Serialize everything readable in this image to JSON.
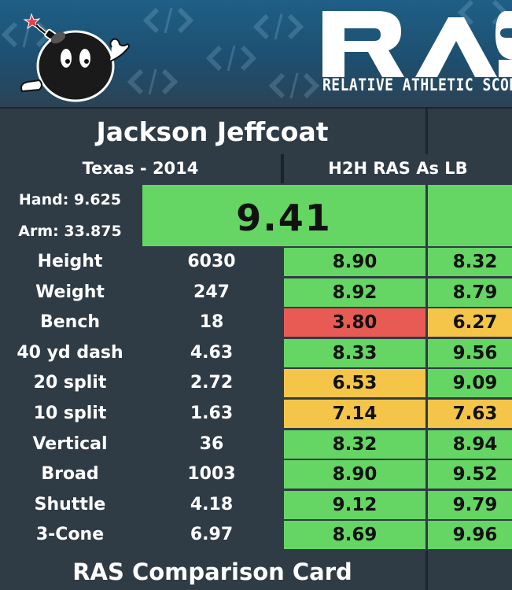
{
  "logo": {
    "text": "RAS",
    "tagline": "RELATIVE ATHLETIC SCORE"
  },
  "player": {
    "name": "Jackson Jeffcoat"
  },
  "header": {
    "school_year": "Texas - 2014",
    "comparison": "H2H RAS As LB"
  },
  "measurements": {
    "hand": "Hand: 9.625",
    "arm": "Arm: 33.875"
  },
  "overall_score": "9.41",
  "metrics": [
    {
      "label": "Height",
      "value": "6030",
      "score1": "8.90",
      "score1_color": "green",
      "score2": "8.32",
      "score2_color": "green"
    },
    {
      "label": "Weight",
      "value": "247",
      "score1": "8.92",
      "score1_color": "green",
      "score2": "8.79",
      "score2_color": "green"
    },
    {
      "label": "Bench",
      "value": "18",
      "score1": "3.80",
      "score1_color": "red",
      "score2": "6.27",
      "score2_color": "orange"
    },
    {
      "label": "40 yd dash",
      "value": "4.63",
      "score1": "8.33",
      "score1_color": "green",
      "score2": "9.56",
      "score2_color": "green"
    },
    {
      "label": "20 split",
      "value": "2.72",
      "score1": "6.53",
      "score1_color": "orange",
      "score2": "9.09",
      "score2_color": "green"
    },
    {
      "label": "10 split",
      "value": "1.63",
      "score1": "7.14",
      "score1_color": "orange",
      "score2": "7.63",
      "score2_color": "orange"
    },
    {
      "label": "Vertical",
      "value": "36",
      "score1": "8.32",
      "score1_color": "green",
      "score2": "8.94",
      "score2_color": "green"
    },
    {
      "label": "Broad",
      "value": "1003",
      "score1": "8.90",
      "score1_color": "green",
      "score2": "9.52",
      "score2_color": "green"
    },
    {
      "label": "Shuttle",
      "value": "4.18",
      "score1": "9.12",
      "score1_color": "green",
      "score2": "9.79",
      "score2_color": "green"
    },
    {
      "label": "3-Cone",
      "value": "6.97",
      "score1": "8.69",
      "score1_color": "green",
      "score2": "9.96",
      "score2_color": "green"
    }
  ],
  "footer": {
    "label": "RAS Comparison Card"
  },
  "colors": {
    "green": "#65d564",
    "red": "#e85b54",
    "orange": "#f5c54a",
    "dark": "#2f3b45",
    "banner": "#1f5f86"
  },
  "icons": {
    "mascot": "bomb-mascot-icon"
  }
}
